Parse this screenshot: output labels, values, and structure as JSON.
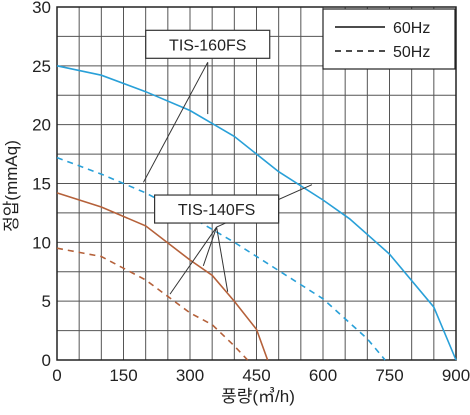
{
  "chart_data": {
    "type": "line",
    "xlabel": "풍량(㎥/h)",
    "ylabel": "정압(mmAq)",
    "xlim": [
      0,
      900
    ],
    "ylim": [
      0,
      30
    ],
    "xticks": [
      0,
      150,
      300,
      450,
      600,
      750,
      900
    ],
    "yticks": [
      0,
      5,
      10,
      15,
      20,
      25,
      30
    ],
    "grid": true,
    "legend": {
      "position": "top-right",
      "entries": [
        {
          "label": "60Hz",
          "style": "solid"
        },
        {
          "label": "50Hz",
          "style": "dashed"
        }
      ]
    },
    "colors": {
      "TIS-160FS": "#29a0d8",
      "TIS-140FS": "#b5613a",
      "grid": "#555555"
    },
    "series": [
      {
        "name": "TIS-160FS",
        "freq": "60Hz",
        "style": "solid",
        "color": "#29a0d8",
        "points": [
          [
            0,
            25
          ],
          [
            100,
            24.2
          ],
          [
            200,
            22.8
          ],
          [
            300,
            21.2
          ],
          [
            400,
            19
          ],
          [
            500,
            16
          ],
          [
            600,
            13.6
          ],
          [
            660,
            12
          ],
          [
            750,
            9
          ],
          [
            850,
            4.5
          ],
          [
            900,
            0
          ]
        ]
      },
      {
        "name": "TIS-160FS",
        "freq": "50Hz",
        "style": "dashed",
        "color": "#29a0d8",
        "points": [
          [
            0,
            17.2
          ],
          [
            100,
            15.8
          ],
          [
            200,
            14.2
          ],
          [
            300,
            12.2
          ],
          [
            400,
            10
          ],
          [
            500,
            7.6
          ],
          [
            600,
            5.2
          ],
          [
            700,
            1.8
          ],
          [
            740,
            0
          ]
        ]
      },
      {
        "name": "TIS-140FS",
        "freq": "60Hz",
        "style": "solid",
        "color": "#b5613a",
        "points": [
          [
            0,
            14.2
          ],
          [
            100,
            13
          ],
          [
            200,
            11.4
          ],
          [
            300,
            8.5
          ],
          [
            350,
            7.2
          ],
          [
            400,
            5
          ],
          [
            450,
            2.6
          ],
          [
            475,
            0
          ]
        ]
      },
      {
        "name": "TIS-140FS",
        "freq": "50Hz",
        "style": "dashed",
        "color": "#b5613a",
        "points": [
          [
            0,
            9.5
          ],
          [
            100,
            8.8
          ],
          [
            200,
            6.8
          ],
          [
            300,
            4
          ],
          [
            350,
            3
          ],
          [
            400,
            1.2
          ],
          [
            430,
            0
          ]
        ]
      }
    ],
    "annotations": [
      {
        "label": "TIS-160FS",
        "anchor": [
          340,
          25.3
        ],
        "targets": [
          [
            195,
            15.1
          ],
          [
            340,
            20.9
          ]
        ]
      },
      {
        "label": "TIS-140FS",
        "anchor": [
          360,
          11.3
        ],
        "targets": [
          [
            255,
            5.6
          ],
          [
            385,
            5.8
          ],
          [
            330,
            8.0
          ],
          [
            575,
            14.9
          ]
        ]
      }
    ]
  }
}
